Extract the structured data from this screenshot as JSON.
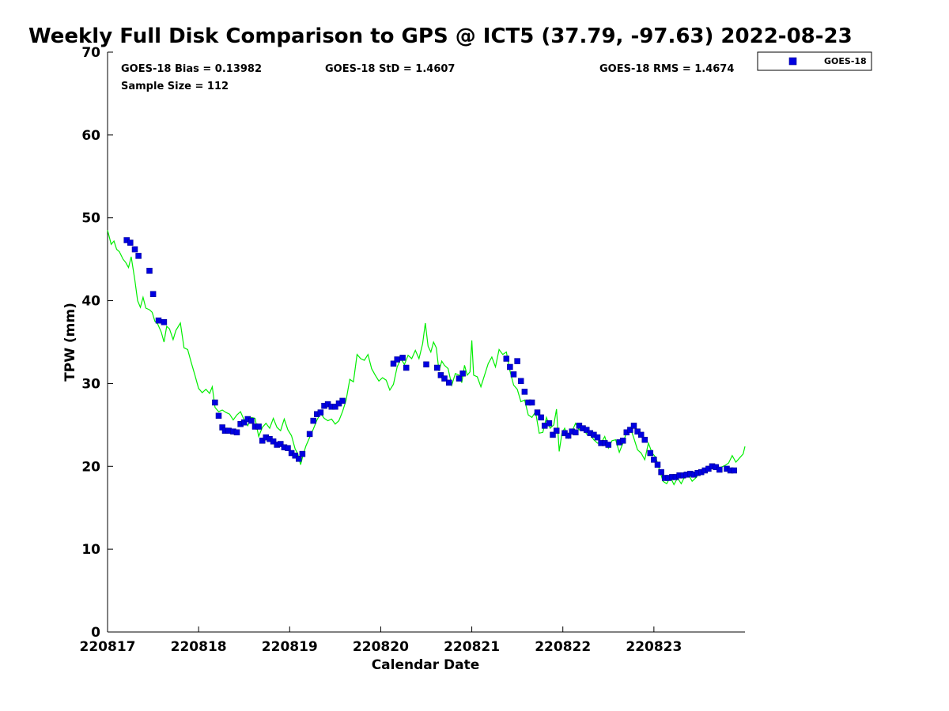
{
  "chart_data": {
    "type": "scatter",
    "title": "Weekly Full Disk Comparison to GPS @ ICT5 (37.79, -97.63) 2022-08-23",
    "xlabel": "Calendar Date",
    "ylabel": "TPW (mm)",
    "xlim": [
      0,
      7
    ],
    "ylim": [
      0,
      70
    ],
    "x_ticks": [
      0,
      1,
      2,
      3,
      4,
      5,
      6
    ],
    "x_tick_labels": [
      "220817",
      "220818",
      "220819",
      "220820",
      "220821",
      "220822",
      "220823"
    ],
    "y_ticks": [
      0,
      10,
      20,
      30,
      40,
      50,
      60,
      70
    ],
    "y_tick_labels": [
      "0",
      "10",
      "20",
      "30",
      "40",
      "50",
      "60",
      "70"
    ],
    "legend": {
      "position": "top-right-outside",
      "entries": [
        "GOES-18"
      ]
    },
    "stats": {
      "bias": "GOES-18 Bias = 0.13982",
      "std": "GOES-18 StD = 1.4607",
      "rms": "GOES-18 RMS = 1.4674",
      "sample": "Sample Size = 112"
    },
    "colors": {
      "goes": "#0000e0",
      "gps": "#00ee00"
    },
    "series": [
      {
        "name": "GPS",
        "style": "line",
        "points": [
          [
            0.0,
            48.5
          ],
          [
            0.04,
            46.8
          ],
          [
            0.07,
            47.2
          ],
          [
            0.1,
            46.2
          ],
          [
            0.13,
            45.9
          ],
          [
            0.17,
            45.0
          ],
          [
            0.2,
            44.6
          ],
          [
            0.23,
            44.0
          ],
          [
            0.26,
            45.3
          ],
          [
            0.3,
            42.5
          ],
          [
            0.33,
            40.0
          ],
          [
            0.36,
            39.2
          ],
          [
            0.39,
            40.4
          ],
          [
            0.42,
            39.1
          ],
          [
            0.46,
            38.9
          ],
          [
            0.49,
            38.6
          ],
          [
            0.52,
            37.5
          ],
          [
            0.55,
            37.2
          ],
          [
            0.59,
            36.2
          ],
          [
            0.62,
            35.0
          ],
          [
            0.65,
            36.9
          ],
          [
            0.68,
            36.6
          ],
          [
            0.72,
            35.3
          ],
          [
            0.75,
            36.4
          ],
          [
            0.8,
            37.3
          ],
          [
            0.84,
            34.3
          ],
          [
            0.88,
            34.1
          ],
          [
            0.92,
            32.5
          ],
          [
            0.96,
            31.0
          ],
          [
            1.0,
            29.4
          ],
          [
            1.04,
            28.9
          ],
          [
            1.08,
            29.3
          ],
          [
            1.12,
            28.8
          ],
          [
            1.15,
            29.6
          ],
          [
            1.18,
            27.1
          ],
          [
            1.22,
            26.6
          ],
          [
            1.26,
            26.8
          ],
          [
            1.3,
            26.5
          ],
          [
            1.34,
            26.3
          ],
          [
            1.38,
            25.6
          ],
          [
            1.42,
            26.2
          ],
          [
            1.46,
            26.6
          ],
          [
            1.5,
            25.6
          ],
          [
            1.54,
            24.9
          ],
          [
            1.58,
            25.9
          ],
          [
            1.62,
            25.8
          ],
          [
            1.66,
            23.6
          ],
          [
            1.7,
            24.7
          ],
          [
            1.74,
            25.2
          ],
          [
            1.78,
            24.6
          ],
          [
            1.82,
            25.8
          ],
          [
            1.86,
            24.7
          ],
          [
            1.9,
            24.3
          ],
          [
            1.94,
            25.7
          ],
          [
            1.98,
            24.4
          ],
          [
            2.02,
            23.7
          ],
          [
            2.06,
            22.1
          ],
          [
            2.09,
            21.5
          ],
          [
            2.12,
            20.2
          ],
          [
            2.15,
            21.5
          ],
          [
            2.18,
            22.5
          ],
          [
            2.22,
            23.5
          ],
          [
            2.26,
            24.5
          ],
          [
            2.3,
            25.6
          ],
          [
            2.34,
            26.4
          ],
          [
            2.38,
            25.8
          ],
          [
            2.42,
            25.5
          ],
          [
            2.46,
            25.7
          ],
          [
            2.5,
            25.1
          ],
          [
            2.54,
            25.5
          ],
          [
            2.58,
            26.6
          ],
          [
            2.62,
            28.0
          ],
          [
            2.66,
            30.5
          ],
          [
            2.7,
            30.2
          ],
          [
            2.74,
            33.5
          ],
          [
            2.78,
            33.0
          ],
          [
            2.82,
            32.8
          ],
          [
            2.86,
            33.5
          ],
          [
            2.9,
            31.8
          ],
          [
            2.94,
            31.0
          ],
          [
            2.98,
            30.3
          ],
          [
            3.02,
            30.7
          ],
          [
            3.06,
            30.4
          ],
          [
            3.1,
            29.2
          ],
          [
            3.14,
            29.9
          ],
          [
            3.18,
            32.0
          ],
          [
            3.22,
            33.0
          ],
          [
            3.26,
            32.3
          ],
          [
            3.3,
            33.4
          ],
          [
            3.34,
            33.0
          ],
          [
            3.38,
            34.0
          ],
          [
            3.42,
            33.0
          ],
          [
            3.46,
            34.8
          ],
          [
            3.49,
            37.3
          ],
          [
            3.52,
            34.5
          ],
          [
            3.55,
            33.8
          ],
          [
            3.58,
            35.0
          ],
          [
            3.61,
            34.3
          ],
          [
            3.64,
            31.5
          ],
          [
            3.67,
            32.7
          ],
          [
            3.7,
            32.2
          ],
          [
            3.74,
            31.8
          ],
          [
            3.78,
            29.8
          ],
          [
            3.82,
            31.2
          ],
          [
            3.86,
            31.0
          ],
          [
            3.89,
            30.1
          ],
          [
            3.92,
            32.2
          ],
          [
            3.95,
            31.0
          ],
          [
            3.98,
            31.4
          ],
          [
            4.0,
            35.2
          ],
          [
            4.02,
            31.0
          ],
          [
            4.06,
            30.8
          ],
          [
            4.1,
            29.6
          ],
          [
            4.14,
            31.0
          ],
          [
            4.18,
            32.4
          ],
          [
            4.22,
            33.2
          ],
          [
            4.26,
            32.0
          ],
          [
            4.3,
            34.1
          ],
          [
            4.34,
            33.5
          ],
          [
            4.38,
            33.8
          ],
          [
            4.42,
            31.5
          ],
          [
            4.46,
            29.8
          ],
          [
            4.5,
            29.3
          ],
          [
            4.54,
            27.8
          ],
          [
            4.58,
            28.0
          ],
          [
            4.62,
            26.2
          ],
          [
            4.66,
            25.9
          ],
          [
            4.7,
            26.6
          ],
          [
            4.74,
            24.0
          ],
          [
            4.78,
            24.1
          ],
          [
            4.82,
            25.9
          ],
          [
            4.86,
            24.6
          ],
          [
            4.9,
            25.0
          ],
          [
            4.93,
            26.9
          ],
          [
            4.96,
            21.8
          ],
          [
            4.99,
            24.0
          ],
          [
            5.02,
            24.6
          ],
          [
            5.06,
            23.4
          ],
          [
            5.1,
            24.2
          ],
          [
            5.14,
            25.2
          ],
          [
            5.18,
            24.4
          ],
          [
            5.22,
            24.7
          ],
          [
            5.26,
            23.9
          ],
          [
            5.3,
            23.8
          ],
          [
            5.34,
            23.2
          ],
          [
            5.38,
            22.8
          ],
          [
            5.42,
            22.8
          ],
          [
            5.46,
            23.6
          ],
          [
            5.5,
            22.2
          ],
          [
            5.54,
            23.1
          ],
          [
            5.58,
            23.2
          ],
          [
            5.62,
            21.7
          ],
          [
            5.66,
            22.8
          ],
          [
            5.7,
            24.1
          ],
          [
            5.74,
            24.7
          ],
          [
            5.78,
            23.4
          ],
          [
            5.82,
            22.0
          ],
          [
            5.86,
            21.6
          ],
          [
            5.9,
            20.8
          ],
          [
            5.94,
            22.8
          ],
          [
            5.98,
            21.6
          ],
          [
            6.02,
            21.1
          ],
          [
            6.06,
            19.6
          ],
          [
            6.1,
            18.2
          ],
          [
            6.14,
            17.9
          ],
          [
            6.18,
            18.7
          ],
          [
            6.22,
            17.8
          ],
          [
            6.26,
            18.6
          ],
          [
            6.3,
            17.9
          ],
          [
            6.34,
            18.8
          ],
          [
            6.38,
            19.0
          ],
          [
            6.42,
            18.2
          ],
          [
            6.46,
            18.6
          ],
          [
            6.5,
            19.2
          ],
          [
            6.54,
            19.5
          ],
          [
            6.58,
            19.6
          ],
          [
            6.62,
            19.8
          ],
          [
            6.66,
            20.2
          ],
          [
            6.7,
            19.6
          ],
          [
            6.74,
            19.9
          ],
          [
            6.78,
            20.1
          ],
          [
            6.82,
            20.4
          ],
          [
            6.86,
            21.3
          ],
          [
            6.9,
            20.5
          ],
          [
            6.94,
            21.0
          ],
          [
            6.98,
            21.5
          ],
          [
            7.0,
            22.4
          ]
        ]
      },
      {
        "name": "GOES-18",
        "style": "marker",
        "points": [
          [
            0.21,
            47.3
          ],
          [
            0.25,
            47.0
          ],
          [
            0.3,
            46.2
          ],
          [
            0.34,
            45.4
          ],
          [
            0.46,
            43.6
          ],
          [
            0.5,
            40.8
          ],
          [
            0.56,
            37.6
          ],
          [
            0.62,
            37.4
          ],
          [
            1.18,
            27.7
          ],
          [
            1.22,
            26.1
          ],
          [
            1.26,
            24.7
          ],
          [
            1.29,
            24.3
          ],
          [
            1.33,
            24.3
          ],
          [
            1.38,
            24.2
          ],
          [
            1.42,
            24.1
          ],
          [
            1.46,
            25.1
          ],
          [
            1.5,
            25.3
          ],
          [
            1.54,
            25.7
          ],
          [
            1.58,
            25.5
          ],
          [
            1.62,
            24.8
          ],
          [
            1.66,
            24.8
          ],
          [
            1.7,
            23.1
          ],
          [
            1.74,
            23.5
          ],
          [
            1.78,
            23.3
          ],
          [
            1.82,
            23.0
          ],
          [
            1.86,
            22.6
          ],
          [
            1.9,
            22.7
          ],
          [
            1.94,
            22.3
          ],
          [
            1.98,
            22.2
          ],
          [
            2.02,
            21.6
          ],
          [
            2.06,
            21.3
          ],
          [
            2.1,
            20.9
          ],
          [
            2.14,
            21.5
          ],
          [
            2.22,
            23.9
          ],
          [
            2.26,
            25.5
          ],
          [
            2.3,
            26.3
          ],
          [
            2.34,
            26.5
          ],
          [
            2.38,
            27.3
          ],
          [
            2.42,
            27.5
          ],
          [
            2.46,
            27.2
          ],
          [
            2.5,
            27.2
          ],
          [
            2.54,
            27.6
          ],
          [
            2.58,
            27.9
          ],
          [
            3.14,
            32.4
          ],
          [
            3.18,
            32.9
          ],
          [
            3.24,
            33.1
          ],
          [
            3.28,
            31.9
          ],
          [
            3.5,
            32.3
          ],
          [
            3.62,
            31.9
          ],
          [
            3.66,
            31.0
          ],
          [
            3.7,
            30.6
          ],
          [
            3.75,
            30.1
          ],
          [
            3.86,
            30.6
          ],
          [
            3.9,
            31.2
          ],
          [
            4.38,
            33.0
          ],
          [
            4.42,
            32.0
          ],
          [
            4.46,
            31.1
          ],
          [
            4.5,
            32.7
          ],
          [
            4.54,
            30.3
          ],
          [
            4.58,
            29.0
          ],
          [
            4.62,
            27.7
          ],
          [
            4.66,
            27.7
          ],
          [
            4.72,
            26.5
          ],
          [
            4.76,
            25.9
          ],
          [
            4.8,
            24.9
          ],
          [
            4.85,
            25.2
          ],
          [
            4.89,
            23.8
          ],
          [
            4.93,
            24.3
          ],
          [
            5.02,
            24.0
          ],
          [
            5.06,
            23.7
          ],
          [
            5.1,
            24.2
          ],
          [
            5.14,
            24.1
          ],
          [
            5.18,
            24.9
          ],
          [
            5.22,
            24.6
          ],
          [
            5.26,
            24.4
          ],
          [
            5.3,
            24.0
          ],
          [
            5.34,
            23.8
          ],
          [
            5.38,
            23.5
          ],
          [
            5.42,
            22.8
          ],
          [
            5.46,
            22.8
          ],
          [
            5.5,
            22.6
          ],
          [
            5.62,
            22.9
          ],
          [
            5.66,
            23.1
          ],
          [
            5.7,
            24.1
          ],
          [
            5.74,
            24.4
          ],
          [
            5.78,
            24.9
          ],
          [
            5.82,
            24.2
          ],
          [
            5.86,
            23.8
          ],
          [
            5.9,
            23.2
          ],
          [
            5.96,
            21.6
          ],
          [
            6.0,
            20.8
          ],
          [
            6.04,
            20.2
          ],
          [
            6.08,
            19.3
          ],
          [
            6.12,
            18.6
          ],
          [
            6.16,
            18.6
          ],
          [
            6.2,
            18.7
          ],
          [
            6.24,
            18.7
          ],
          [
            6.28,
            18.9
          ],
          [
            6.32,
            18.9
          ],
          [
            6.36,
            19.0
          ],
          [
            6.4,
            19.1
          ],
          [
            6.44,
            19.0
          ],
          [
            6.48,
            19.2
          ],
          [
            6.52,
            19.3
          ],
          [
            6.56,
            19.5
          ],
          [
            6.6,
            19.7
          ],
          [
            6.64,
            20.0
          ],
          [
            6.68,
            19.9
          ],
          [
            6.72,
            19.6
          ],
          [
            6.8,
            19.7
          ],
          [
            6.84,
            19.5
          ],
          [
            6.88,
            19.5
          ]
        ]
      }
    ]
  }
}
